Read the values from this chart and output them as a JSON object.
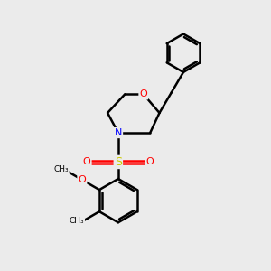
{
  "bg_color": "#ebebeb",
  "line_color": "#000000",
  "bond_width": 1.8,
  "atom_colors": {
    "O": "#ff0000",
    "N": "#0000ff",
    "S": "#cccc00",
    "C": "#000000"
  },
  "figsize": [
    3.0,
    3.0
  ],
  "dpi": 100,
  "font_size": 8
}
